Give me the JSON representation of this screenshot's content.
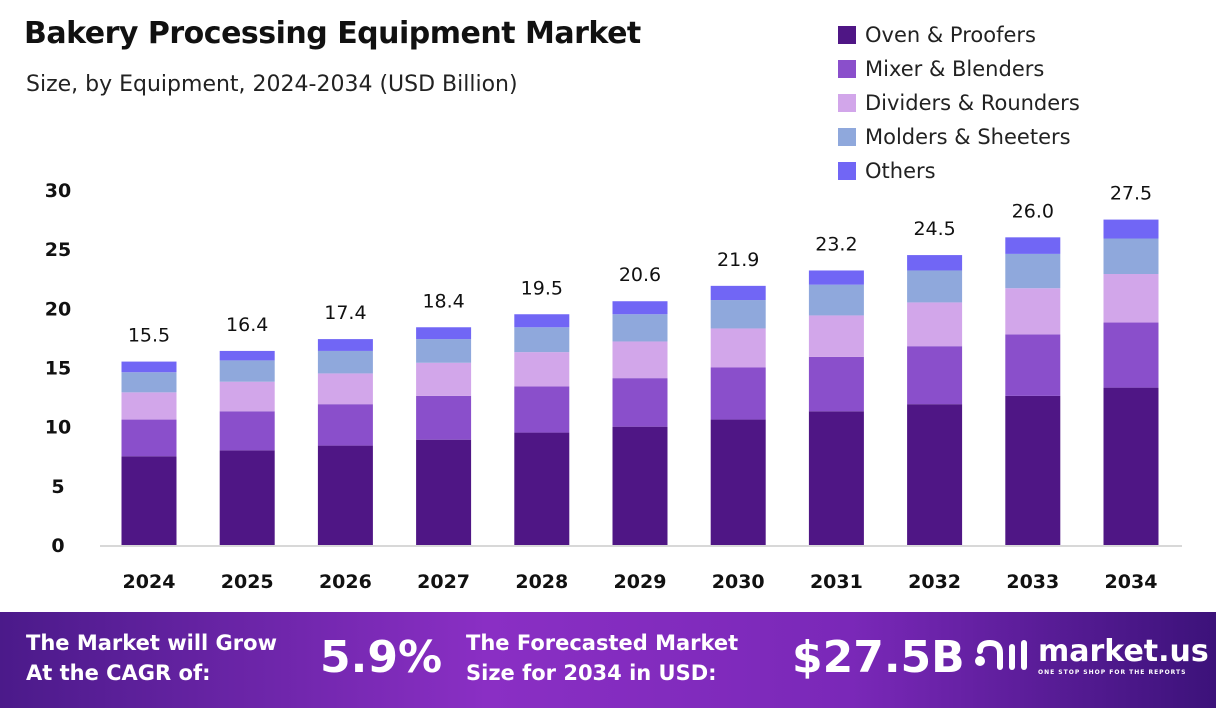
{
  "chart_data": {
    "type": "bar",
    "stacked": true,
    "title": "Bakery Processing Equipment Market",
    "subtitle": "Size, by Equipment, 2024-2034 (USD Billion)",
    "categories": [
      "2024",
      "2025",
      "2026",
      "2027",
      "2028",
      "2029",
      "2030",
      "2031",
      "2032",
      "2033",
      "2034"
    ],
    "series": [
      {
        "name": "Oven & Proofers",
        "color": "#4f1685",
        "values": [
          7.5,
          8.0,
          8.4,
          8.9,
          9.5,
          10.0,
          10.6,
          11.3,
          11.9,
          12.6,
          13.3
        ]
      },
      {
        "name": "Mixer & Blenders",
        "color": "#8a4fcb",
        "values": [
          3.1,
          3.3,
          3.5,
          3.7,
          3.9,
          4.1,
          4.4,
          4.6,
          4.9,
          5.2,
          5.5
        ]
      },
      {
        "name": "Dividers & Rounders",
        "color": "#d2a6ea",
        "values": [
          2.3,
          2.5,
          2.6,
          2.8,
          2.9,
          3.1,
          3.3,
          3.5,
          3.7,
          3.9,
          4.1
        ]
      },
      {
        "name": "Molders & Sheeters",
        "color": "#8fa8dc",
        "values": [
          1.7,
          1.8,
          1.9,
          2.0,
          2.1,
          2.3,
          2.4,
          2.6,
          2.7,
          2.9,
          3.0
        ]
      },
      {
        "name": "Others",
        "color": "#7166f5",
        "values": [
          0.9,
          0.8,
          1.0,
          1.0,
          1.1,
          1.1,
          1.2,
          1.2,
          1.3,
          1.4,
          1.6
        ]
      }
    ],
    "totals": [
      "15.5",
      "16.4",
      "17.4",
      "18.4",
      "19.5",
      "20.6",
      "21.9",
      "23.2",
      "24.5",
      "26.0",
      "27.5"
    ],
    "yticks": [
      "0",
      "5",
      "10",
      "15",
      "20",
      "25",
      "30"
    ],
    "ylim": [
      0,
      30
    ],
    "grid": false,
    "legend": "top-right"
  },
  "footer": {
    "cagr_label_1": "The Market will Grow",
    "cagr_label_2": "At the CAGR of:",
    "cagr_value": "5.9%",
    "forecast_label_1": "The Forecasted Market",
    "forecast_label_2": "Size for 2034 in USD:",
    "forecast_value": "$27.5B",
    "logo_text": "market.us",
    "logo_tagline": "ONE STOP SHOP FOR THE REPORTS"
  }
}
